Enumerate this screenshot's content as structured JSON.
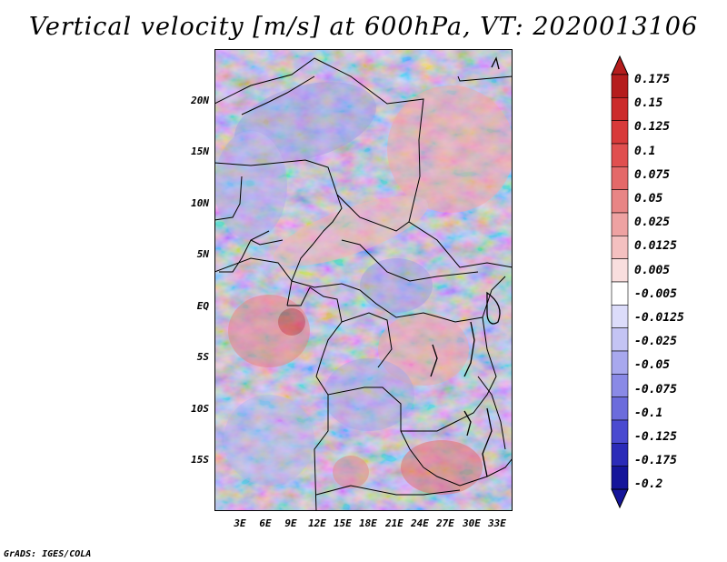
{
  "title": "Vertical velocity [m/s] at 600hPa, VT: 2020013106",
  "credit": "GrADS: IGES/COLA",
  "map": {
    "lat_labels": [
      "20N",
      "15N",
      "10N",
      "5N",
      "EQ",
      "5S",
      "10S",
      "15S"
    ],
    "lon_labels": [
      "3E",
      "6E",
      "9E",
      "12E",
      "15E",
      "18E",
      "21E",
      "24E",
      "27E",
      "30E",
      "33E"
    ]
  },
  "colorbar": {
    "labels": [
      "0.175",
      "0.15",
      "0.125",
      "0.1",
      "0.075",
      "0.05",
      "0.025",
      "0.0125",
      "0.005",
      "-0.005",
      "-0.0125",
      "-0.025",
      "-0.05",
      "-0.075",
      "-0.1",
      "-0.125",
      "-0.175",
      "-0.2"
    ],
    "colors": [
      "#b51d1d",
      "#cc2b2b",
      "#d83a3a",
      "#e04f4f",
      "#e46969",
      "#e88585",
      "#eea2a2",
      "#f4c0c0",
      "#f9dede",
      "#ffffff",
      "#dcdcfa",
      "#c4c4f4",
      "#a8a8ee",
      "#8a8ae6",
      "#6c6cdc",
      "#4a4ad0",
      "#2b2bb8",
      "#15159a"
    ]
  }
}
